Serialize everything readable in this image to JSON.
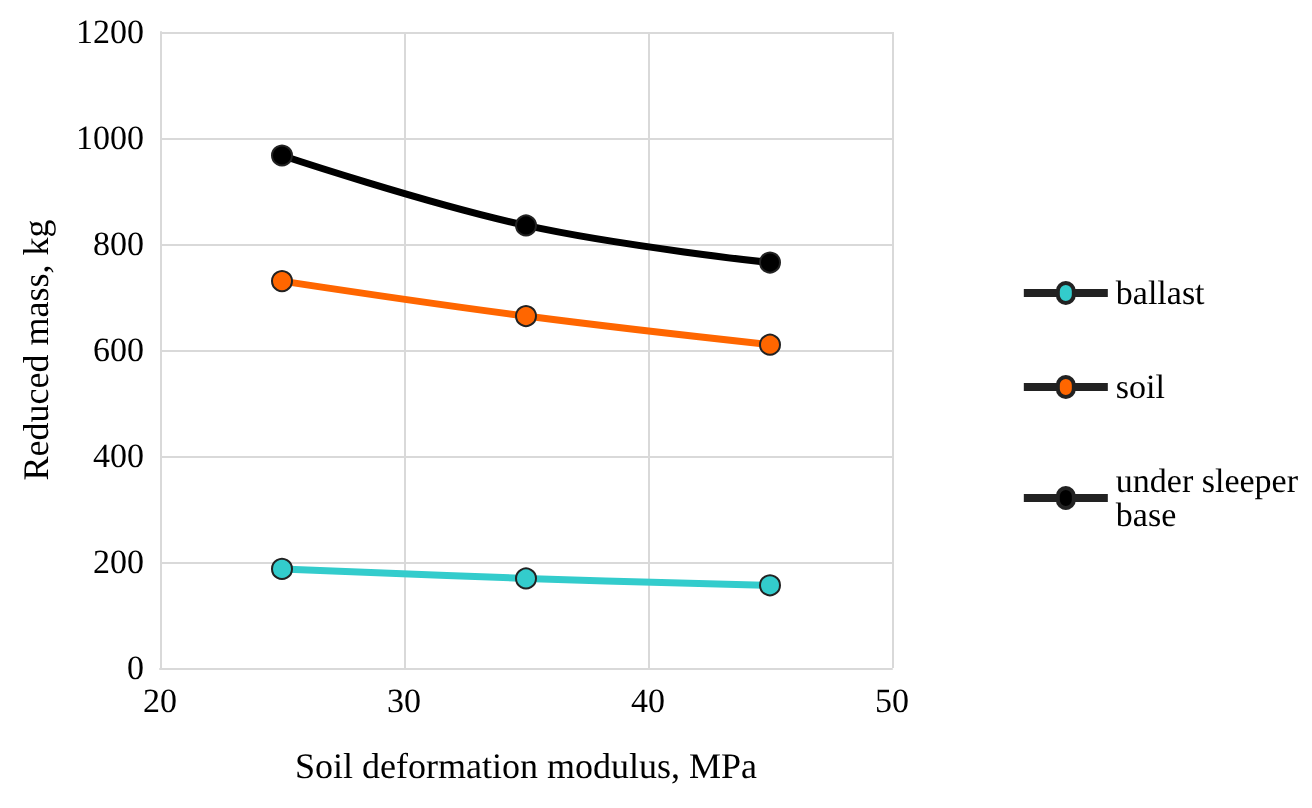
{
  "chart_data": {
    "type": "line",
    "xlabel": "Soil deformation modulus, MPa",
    "ylabel": "Reduced mass, kg",
    "x": [
      25,
      35,
      45
    ],
    "series": [
      {
        "name": "ballast",
        "color": "#33cccc",
        "values": [
          187,
          169,
          156
        ]
      },
      {
        "name": "soil",
        "color": "#ff6600",
        "values": [
          730,
          664,
          610
        ]
      },
      {
        "name": "under sleeper base",
        "color": "#000000",
        "values": [
          967,
          835,
          765
        ]
      }
    ],
    "xlim": [
      20,
      50
    ],
    "xticks": [
      20,
      30,
      40,
      50
    ],
    "ylim": [
      0,
      1200
    ],
    "yticks": [
      0,
      200,
      400,
      600,
      800,
      1000,
      1200
    ],
    "grid": true,
    "legend": "right",
    "marker": "circle",
    "line_style": "solid"
  }
}
